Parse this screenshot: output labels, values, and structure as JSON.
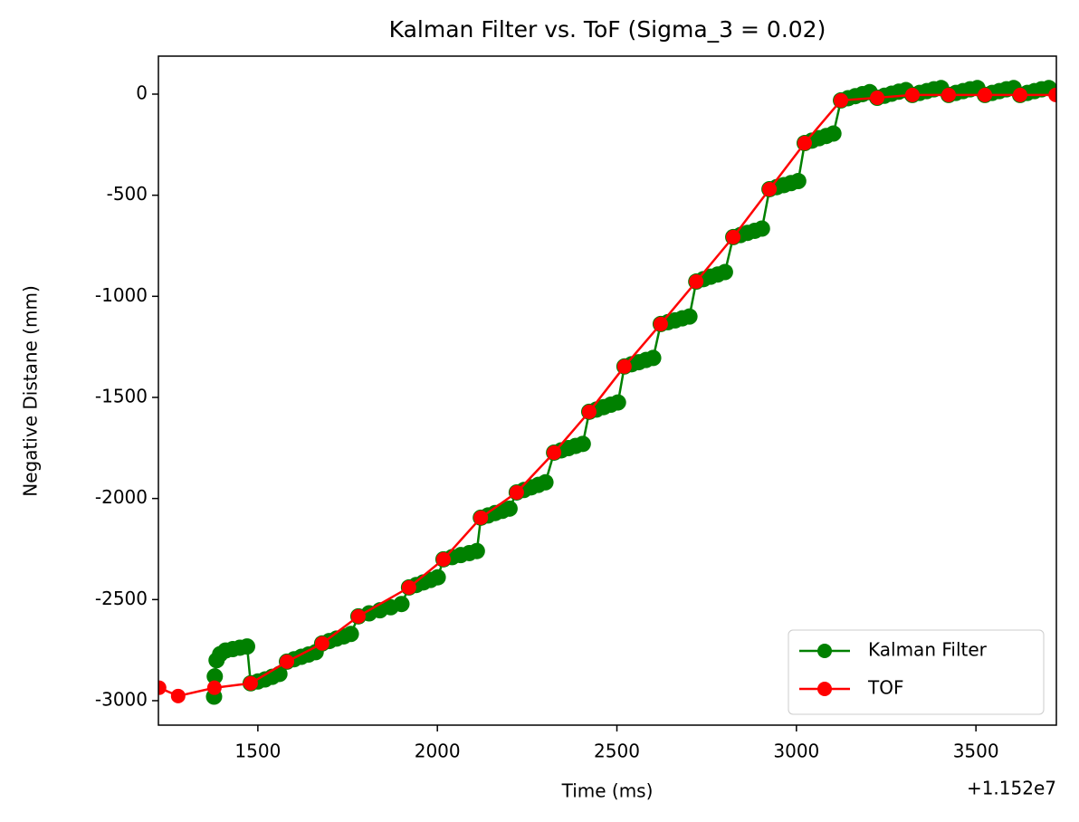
{
  "chart_data": {
    "type": "line",
    "title": "Kalman Filter vs. ToF (Sigma_3 = 0.02)",
    "x_label": "Time (ms)",
    "y_label": "Negative Distane (mm)",
    "x_offset_label": "+1.152e7",
    "xlim": [
      1223,
      3724
    ],
    "ylim": [
      -3121,
      188
    ],
    "xticks": [
      1500,
      2000,
      2500,
      3000,
      3500
    ],
    "yticks": [
      0,
      -500,
      -1000,
      -1500,
      -2000,
      -2500,
      -3000
    ],
    "legend": "lower right",
    "series": [
      {
        "name": "Kalman Filter",
        "color": "#008000",
        "x": [
          1378,
          1380,
          1385,
          1395,
          1410,
          1430,
          1450,
          1470,
          1480,
          1500,
          1520,
          1540,
          1560,
          1581,
          1601,
          1621,
          1641,
          1661,
          1679,
          1699,
          1719,
          1739,
          1759,
          1780,
          1810,
          1840,
          1870,
          1900,
          1921,
          1941,
          1961,
          1981,
          2001,
          2017,
          2041,
          2065,
          2089,
          2110,
          2121,
          2141,
          2161,
          2181,
          2201,
          2221,
          2241,
          2261,
          2281,
          2301,
          2325,
          2345,
          2365,
          2385,
          2405,
          2423,
          2443,
          2463,
          2483,
          2503,
          2521,
          2541,
          2561,
          2581,
          2601,
          2622,
          2642,
          2662,
          2682,
          2702,
          2721,
          2741,
          2761,
          2781,
          2801,
          2824,
          2844,
          2864,
          2884,
          2904,
          2925,
          2945,
          2965,
          2985,
          3005,
          3023,
          3043,
          3063,
          3083,
          3103,
          3124,
          3144,
          3164,
          3184,
          3204,
          3225,
          3245,
          3265,
          3285,
          3305,
          3323,
          3343,
          3363,
          3383,
          3403,
          3424,
          3444,
          3464,
          3484,
          3504,
          3525,
          3545,
          3565,
          3585,
          3605,
          3623,
          3643,
          3663,
          3683,
          3703
        ],
        "values": [
          -2980,
          -2880,
          -2800,
          -2770,
          -2752,
          -2745,
          -2738,
          -2732,
          -2914,
          -2905,
          -2895,
          -2882,
          -2868,
          -2807,
          -2795,
          -2783,
          -2772,
          -2760,
          -2717,
          -2705,
          -2693,
          -2682,
          -2670,
          -2583,
          -2568,
          -2553,
          -2538,
          -2522,
          -2440,
          -2428,
          -2415,
          -2403,
          -2390,
          -2301,
          -2290,
          -2280,
          -2270,
          -2260,
          -2095,
          -2084,
          -2072,
          -2061,
          -2050,
          -1970,
          -1958,
          -1945,
          -1933,
          -1920,
          -1773,
          -1762,
          -1751,
          -1740,
          -1730,
          -1571,
          -1560,
          -1548,
          -1536,
          -1525,
          -1347,
          -1336,
          -1326,
          -1315,
          -1305,
          -1137,
          -1128,
          -1119,
          -1109,
          -1100,
          -927,
          -915,
          -903,
          -892,
          -880,
          -707,
          -697,
          -686,
          -676,
          -665,
          -470,
          -460,
          -450,
          -440,
          -430,
          -242,
          -230,
          -218,
          -207,
          -195,
          -31,
          -20,
          -10,
          0,
          10,
          -18,
          -8,
          2,
          12,
          20,
          -4,
          6,
          15,
          24,
          30,
          -4,
          6,
          15,
          24,
          30,
          -4,
          6,
          15,
          24,
          30,
          -4,
          6,
          15,
          24,
          30
        ]
      },
      {
        "name": "TOF",
        "color": "#ff0000",
        "x": [
          1225,
          1278,
          1379,
          1480,
          1581,
          1679,
          1780,
          1921,
          2017,
          2121,
          2221,
          2325,
          2423,
          2521,
          2622,
          2721,
          2824,
          2925,
          3023,
          3124,
          3225,
          3323,
          3424,
          3525,
          3623,
          3722
        ],
        "values": [
          -2936,
          -2977,
          -2936,
          -2914,
          -2807,
          -2717,
          -2583,
          -2440,
          -2301,
          -2095,
          -1970,
          -1773,
          -1571,
          -1347,
          -1137,
          -927,
          -707,
          -470,
          -242,
          -31,
          -18,
          -4,
          -4,
          -4,
          -4,
          -4
        ]
      }
    ]
  }
}
